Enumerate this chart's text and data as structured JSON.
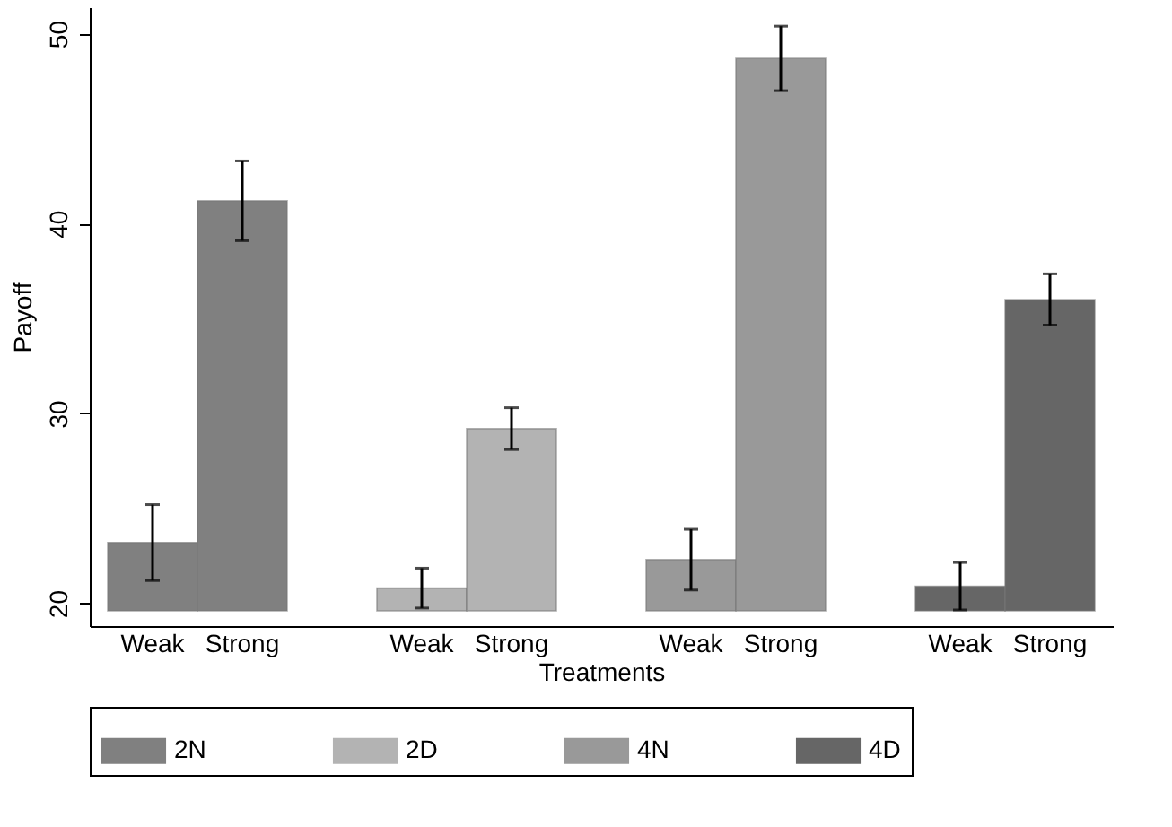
{
  "chart_data": {
    "type": "bar",
    "xlabel": "Treatments",
    "ylabel": "Payoff",
    "categories": [
      "Weak",
      "Strong",
      "Weak",
      "Strong",
      "Weak",
      "Strong",
      "Weak",
      "Strong"
    ],
    "series": [
      {
        "name": "2N",
        "color": "#808080",
        "values": [
          3.6,
          21.6,
          null,
          null,
          null,
          null,
          null,
          null
        ],
        "base": [
          19.6,
          19.6,
          null,
          null,
          null,
          null,
          null,
          null
        ],
        "errors": [
          2.0,
          2.1,
          null,
          null,
          null,
          null,
          null,
          null
        ]
      },
      {
        "name": "2D",
        "color": "#b3b3b3",
        "values": [
          null,
          null,
          1.2,
          9.6,
          null,
          null,
          null,
          null
        ],
        "base": [
          null,
          null,
          19.6,
          19.6,
          null,
          null,
          null,
          null
        ],
        "errors": [
          null,
          null,
          1.05,
          1.1,
          null,
          null,
          null,
          null
        ]
      },
      {
        "name": "4N",
        "color": "#999999",
        "values": [
          null,
          null,
          null,
          null,
          2.7,
          29.1,
          null,
          null
        ],
        "base": [
          null,
          null,
          null,
          null,
          19.6,
          19.6,
          null,
          null
        ],
        "errors": [
          null,
          null,
          null,
          null,
          1.6,
          1.7,
          null,
          null
        ]
      },
      {
        "name": "4D",
        "color": "#666666",
        "values": [
          null,
          null,
          null,
          null,
          null,
          null,
          1.3,
          16.4
        ],
        "base": [
          null,
          null,
          null,
          null,
          null,
          null,
          19.6,
          19.6
        ],
        "errors": [
          null,
          null,
          null,
          null,
          null,
          null,
          1.25,
          1.35
        ]
      }
    ],
    "ylim": [
      18.8,
      51.4
    ],
    "yticks": [
      20,
      30,
      40,
      50
    ],
    "grid": false,
    "legend": "bottom"
  }
}
